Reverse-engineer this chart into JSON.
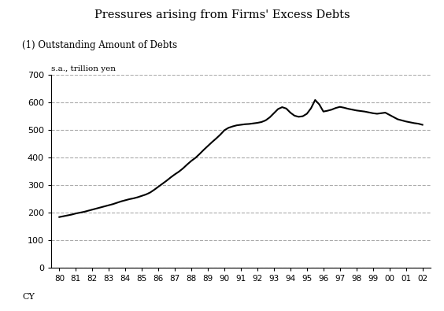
{
  "title": "Pressures arising from Firms' Excess Debts",
  "subtitle": "(1) Outstanding Amount of Debts",
  "ylabel_text": "s.a., trillion yen",
  "ylim": [
    0,
    700
  ],
  "yticks": [
    0,
    100,
    200,
    300,
    400,
    500,
    600,
    700
  ],
  "xtick_labels": [
    "80",
    "81",
    "82",
    "83",
    "84",
    "85",
    "86",
    "87",
    "88",
    "89",
    "90",
    "91",
    "92",
    "93",
    "94",
    "95",
    "96",
    "97",
    "98",
    "99",
    "00",
    "01",
    "02"
  ],
  "line_color": "#000000",
  "line_width": 1.5,
  "background_color": "#ffffff",
  "grid_color": "#aaaaaa",
  "grid_style": "--",
  "years": [
    1980,
    1980.25,
    1980.5,
    1980.75,
    1981,
    1981.25,
    1981.5,
    1981.75,
    1982,
    1982.25,
    1982.5,
    1982.75,
    1983,
    1983.25,
    1983.5,
    1983.75,
    1984,
    1984.25,
    1984.5,
    1984.75,
    1985,
    1985.25,
    1985.5,
    1985.75,
    1986,
    1986.25,
    1986.5,
    1986.75,
    1987,
    1987.25,
    1987.5,
    1987.75,
    1988,
    1988.25,
    1988.5,
    1988.75,
    1989,
    1989.25,
    1989.5,
    1989.75,
    1990,
    1990.25,
    1990.5,
    1990.75,
    1991,
    1991.25,
    1991.5,
    1991.75,
    1992,
    1992.25,
    1992.5,
    1992.75,
    1993,
    1993.25,
    1993.5,
    1993.75,
    1994,
    1994.25,
    1994.5,
    1994.75,
    1995,
    1995.25,
    1995.5,
    1995.75,
    1996,
    1996.25,
    1996.5,
    1996.75,
    1997,
    1997.25,
    1997.5,
    1997.75,
    1998,
    1998.25,
    1998.5,
    1998.75,
    1999,
    1999.25,
    1999.5,
    1999.75,
    2000,
    2000.25,
    2000.5,
    2000.75,
    2001,
    2001.25,
    2001.5,
    2001.75,
    2002
  ],
  "values": [
    183,
    186,
    189,
    192,
    196,
    199,
    202,
    206,
    210,
    214,
    218,
    222,
    226,
    230,
    235,
    240,
    244,
    248,
    251,
    255,
    260,
    265,
    272,
    282,
    293,
    304,
    315,
    327,
    338,
    348,
    360,
    374,
    387,
    398,
    412,
    427,
    441,
    455,
    468,
    482,
    498,
    507,
    512,
    516,
    518,
    520,
    521,
    523,
    525,
    528,
    534,
    545,
    560,
    575,
    582,
    577,
    562,
    551,
    547,
    549,
    558,
    578,
    608,
    592,
    566,
    569,
    573,
    579,
    583,
    580,
    576,
    573,
    570,
    568,
    566,
    563,
    560,
    558,
    560,
    562,
    554,
    546,
    538,
    534,
    530,
    527,
    524,
    522,
    518
  ]
}
